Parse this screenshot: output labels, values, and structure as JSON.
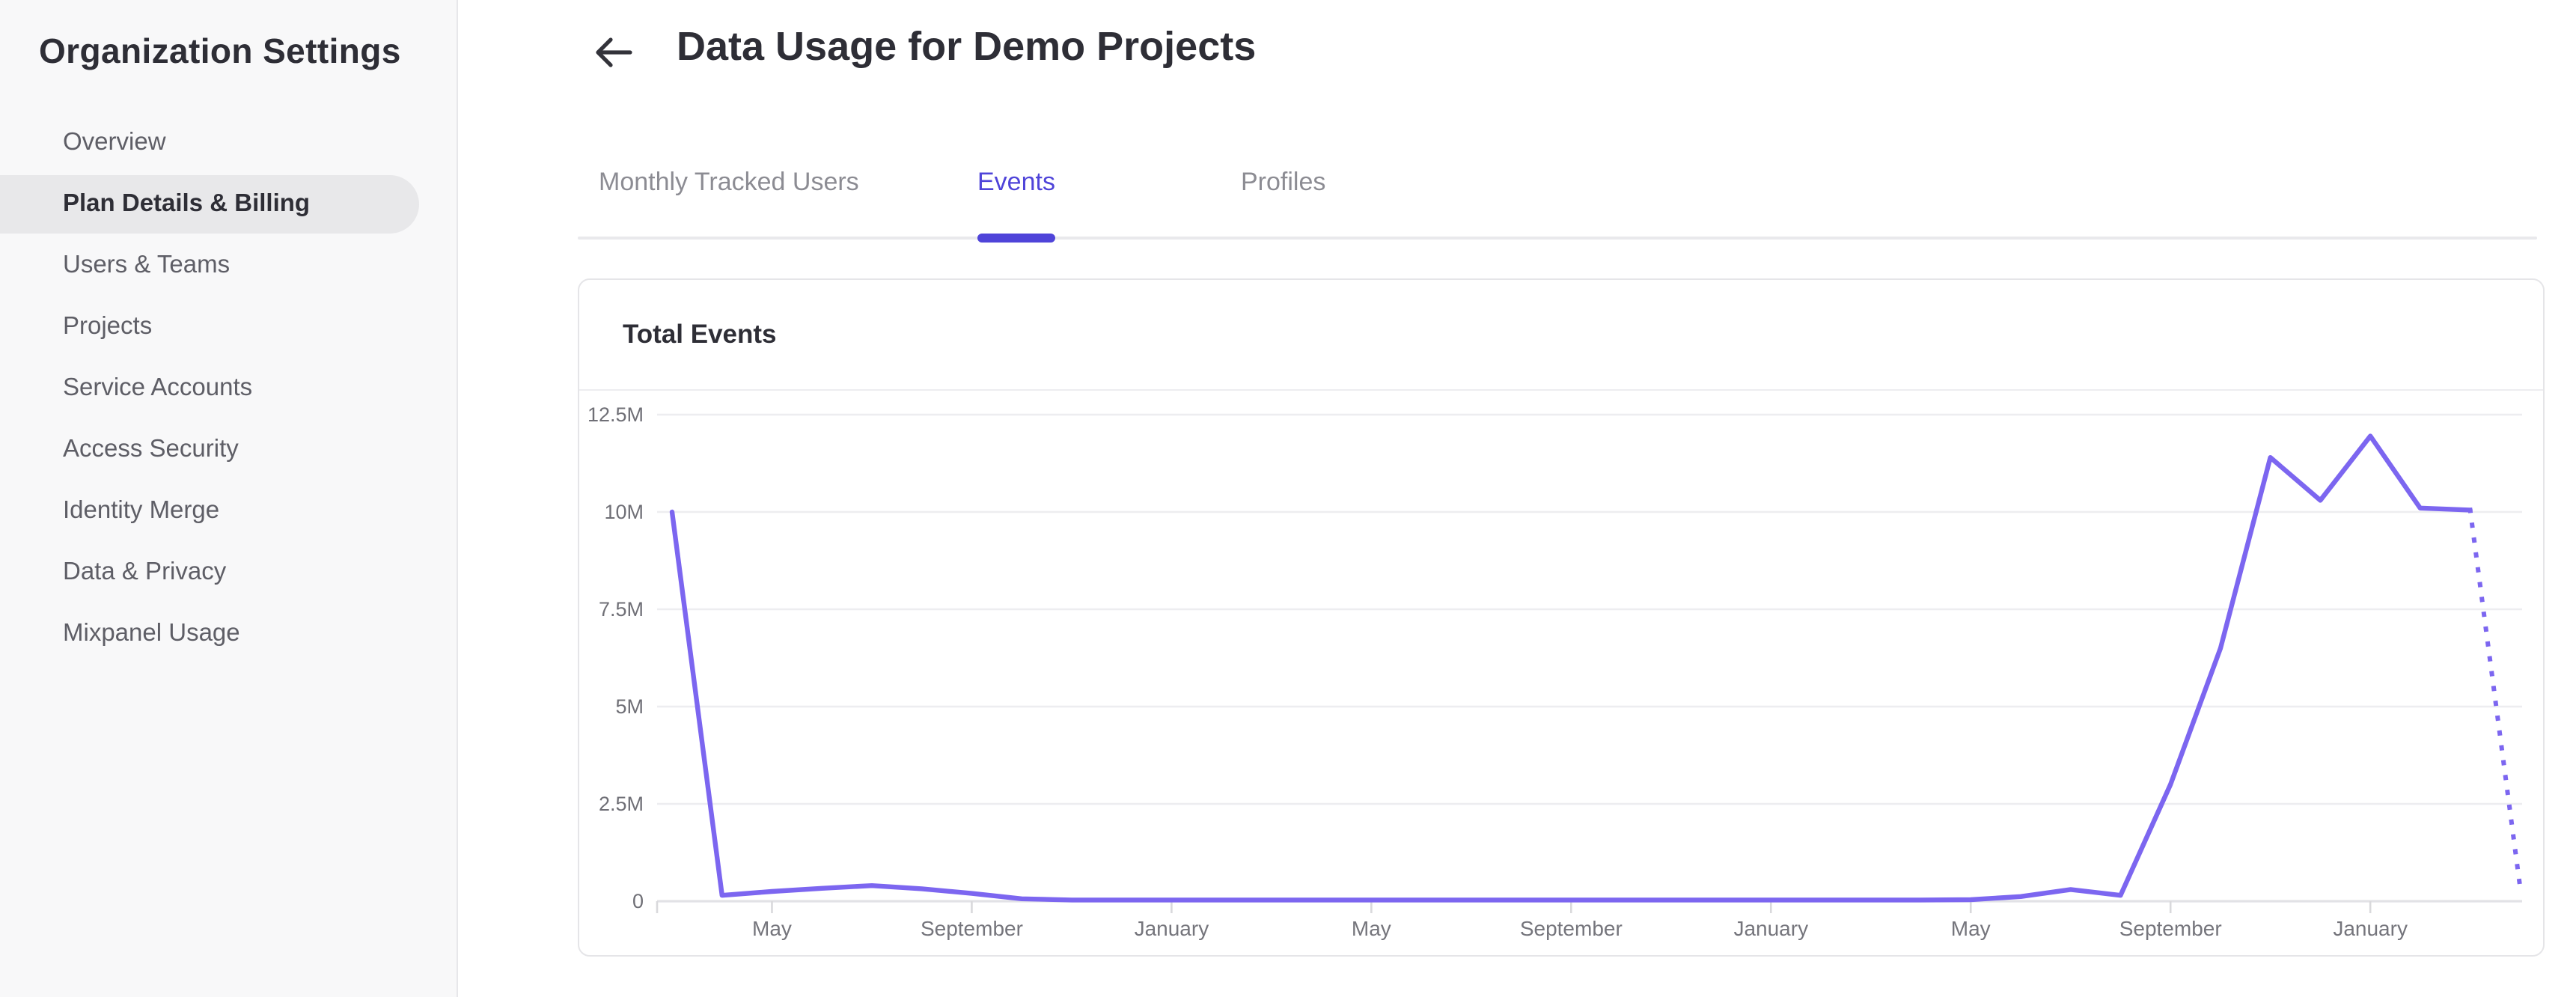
{
  "sidebar": {
    "title": "Organization Settings",
    "items": [
      {
        "label": "Overview",
        "selected": false
      },
      {
        "label": "Plan Details & Billing",
        "selected": true
      },
      {
        "label": "Users & Teams",
        "selected": false
      },
      {
        "label": "Projects",
        "selected": false
      },
      {
        "label": "Service Accounts",
        "selected": false
      },
      {
        "label": "Access Security",
        "selected": false
      },
      {
        "label": "Identity Merge",
        "selected": false
      },
      {
        "label": "Data & Privacy",
        "selected": false
      },
      {
        "label": "Mixpanel Usage",
        "selected": false
      }
    ]
  },
  "header": {
    "title": "Data Usage for Demo Projects",
    "back_icon": "arrow-left"
  },
  "tabs": [
    {
      "label": "Monthly Tracked Users",
      "active": false
    },
    {
      "label": "Events",
      "active": true
    },
    {
      "label": "Profiles",
      "active": false
    }
  ],
  "card": {
    "title": "Total Events"
  },
  "colors": {
    "accent": "#4f44d9",
    "chart_line": "#7c66f0",
    "sidebar_bg": "#f8f8f9",
    "selected_item_bg": "#e8e8ea",
    "grid_line": "#ededf0",
    "axis_line": "#e2e2e6",
    "tick_mark": "#d9d9dc",
    "text_dark": "#2e2e36",
    "text_gray": "#5e5e66",
    "axis_text": "#6f6f76"
  },
  "chart_data": {
    "type": "line",
    "title": "Total Events",
    "legend": "none",
    "grid": "horizontal",
    "y_axis": {
      "tick_labels": [
        "0",
        "2.5M",
        "5M",
        "7.5M",
        "10M",
        "12.5M"
      ],
      "tick_values": [
        0,
        2500000,
        5000000,
        7500000,
        10000000,
        12500000
      ],
      "range": [
        0,
        12500000
      ]
    },
    "x_axis": {
      "tick_labels": [
        "May",
        "September",
        "January",
        "May",
        "September",
        "January",
        "May",
        "September",
        "January"
      ],
      "tick_month_indices": [
        2,
        6,
        10,
        14,
        18,
        22,
        26,
        30,
        34
      ]
    },
    "series": [
      {
        "name": "Total Events",
        "style": "solid",
        "start_month_index": 0,
        "values": [
          10000000,
          150000,
          250000,
          330000,
          400000,
          320000,
          200000,
          60000,
          30000,
          30000,
          30000,
          30000,
          30000,
          30000,
          30000,
          30000,
          30000,
          30000,
          30000,
          30000,
          30000,
          30000,
          30000,
          30000,
          30000,
          30000,
          40000,
          120000,
          300000,
          150000,
          3000000,
          6500000,
          11400000,
          10300000,
          11950000,
          10100000,
          10050000
        ]
      }
    ],
    "projection": {
      "style": "dotted",
      "month_indices": [
        36,
        37
      ],
      "values": [
        10050000,
        350000
      ]
    }
  }
}
